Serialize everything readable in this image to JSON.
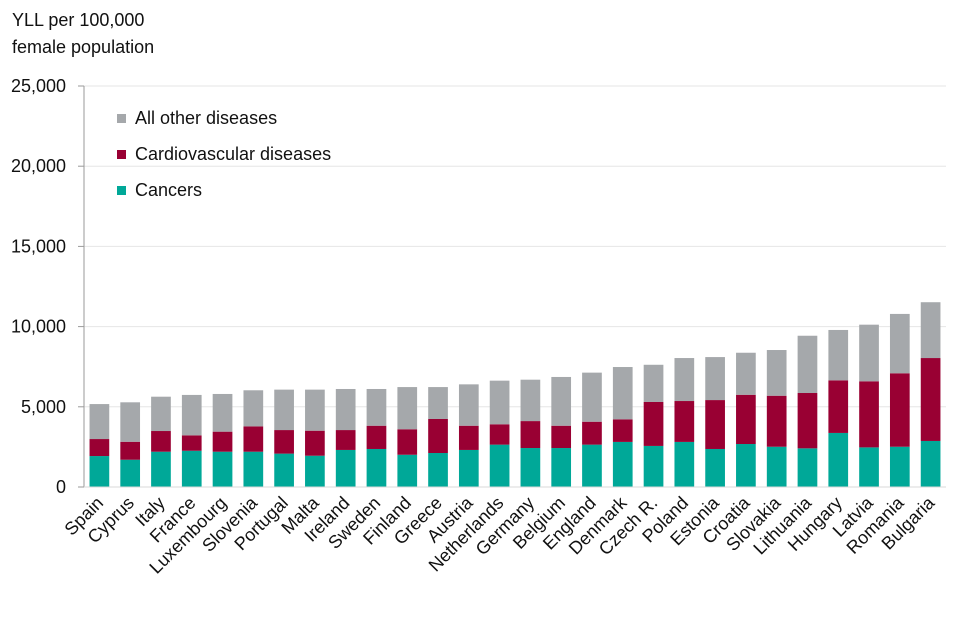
{
  "chart_data": {
    "type": "bar",
    "stacked": true,
    "title": "",
    "ylabel": "YLL per 100,000 female population",
    "ylabel_lines": [
      "YLL per 100,000",
      "female population"
    ],
    "xlabel": "",
    "ylim": [
      0,
      25000
    ],
    "yticks": [
      0,
      5000,
      10000,
      15000,
      20000,
      25000
    ],
    "ytick_labels": [
      "0",
      "5,000",
      "10,000",
      "15,000",
      "20,000",
      "25,000"
    ],
    "grid": true,
    "legend_position": "top-left",
    "categories": [
      "Spain",
      "Cyprus",
      "Italy",
      "France",
      "Luxembourg",
      "Slovenia",
      "Portugal",
      "Malta",
      "Ireland",
      "Sweden",
      "Finland",
      "Greece",
      "Austria",
      "Netherlands",
      "Germany",
      "Belgium",
      "England",
      "Denmark",
      "Czech R.",
      "Poland",
      "Estonia",
      "Croatia",
      "Slovakia",
      "Lithuania",
      "Hungary",
      "Latvia",
      "Romania",
      "Bulgaria"
    ],
    "series": [
      {
        "name": "Cancers",
        "color": "#00A898",
        "values": [
          1930,
          1700,
          2200,
          2260,
          2200,
          2200,
          2080,
          1950,
          2310,
          2370,
          2010,
          2120,
          2310,
          2640,
          2430,
          2430,
          2640,
          2810,
          2560,
          2810,
          2370,
          2680,
          2510,
          2410,
          3370,
          2470,
          2510,
          2870
        ]
      },
      {
        "name": "Cardiovascular diseases",
        "color": "#990033",
        "values": [
          1060,
          1120,
          1290,
          960,
          1250,
          1580,
          1470,
          1560,
          1240,
          1450,
          1590,
          2120,
          1510,
          1270,
          1680,
          1390,
          1430,
          1410,
          2740,
          2550,
          3050,
          3070,
          3180,
          3450,
          3280,
          4120,
          4580,
          5170
        ]
      },
      {
        "name": "All other diseases",
        "color": "#A5A8AB",
        "values": [
          2180,
          2460,
          2140,
          2520,
          2350,
          2250,
          2520,
          2560,
          2560,
          2290,
          2630,
          1990,
          2580,
          2720,
          2580,
          3040,
          3060,
          3260,
          2320,
          2680,
          2680,
          2620,
          2850,
          3570,
          3140,
          3530,
          3700,
          3480
        ]
      }
    ]
  },
  "legend": {
    "items": [
      {
        "label": "All other diseases",
        "color": "#A5A8AB"
      },
      {
        "label": "Cardiovascular diseases",
        "color": "#990033"
      },
      {
        "label": "Cancers",
        "color": "#00A898"
      }
    ]
  }
}
